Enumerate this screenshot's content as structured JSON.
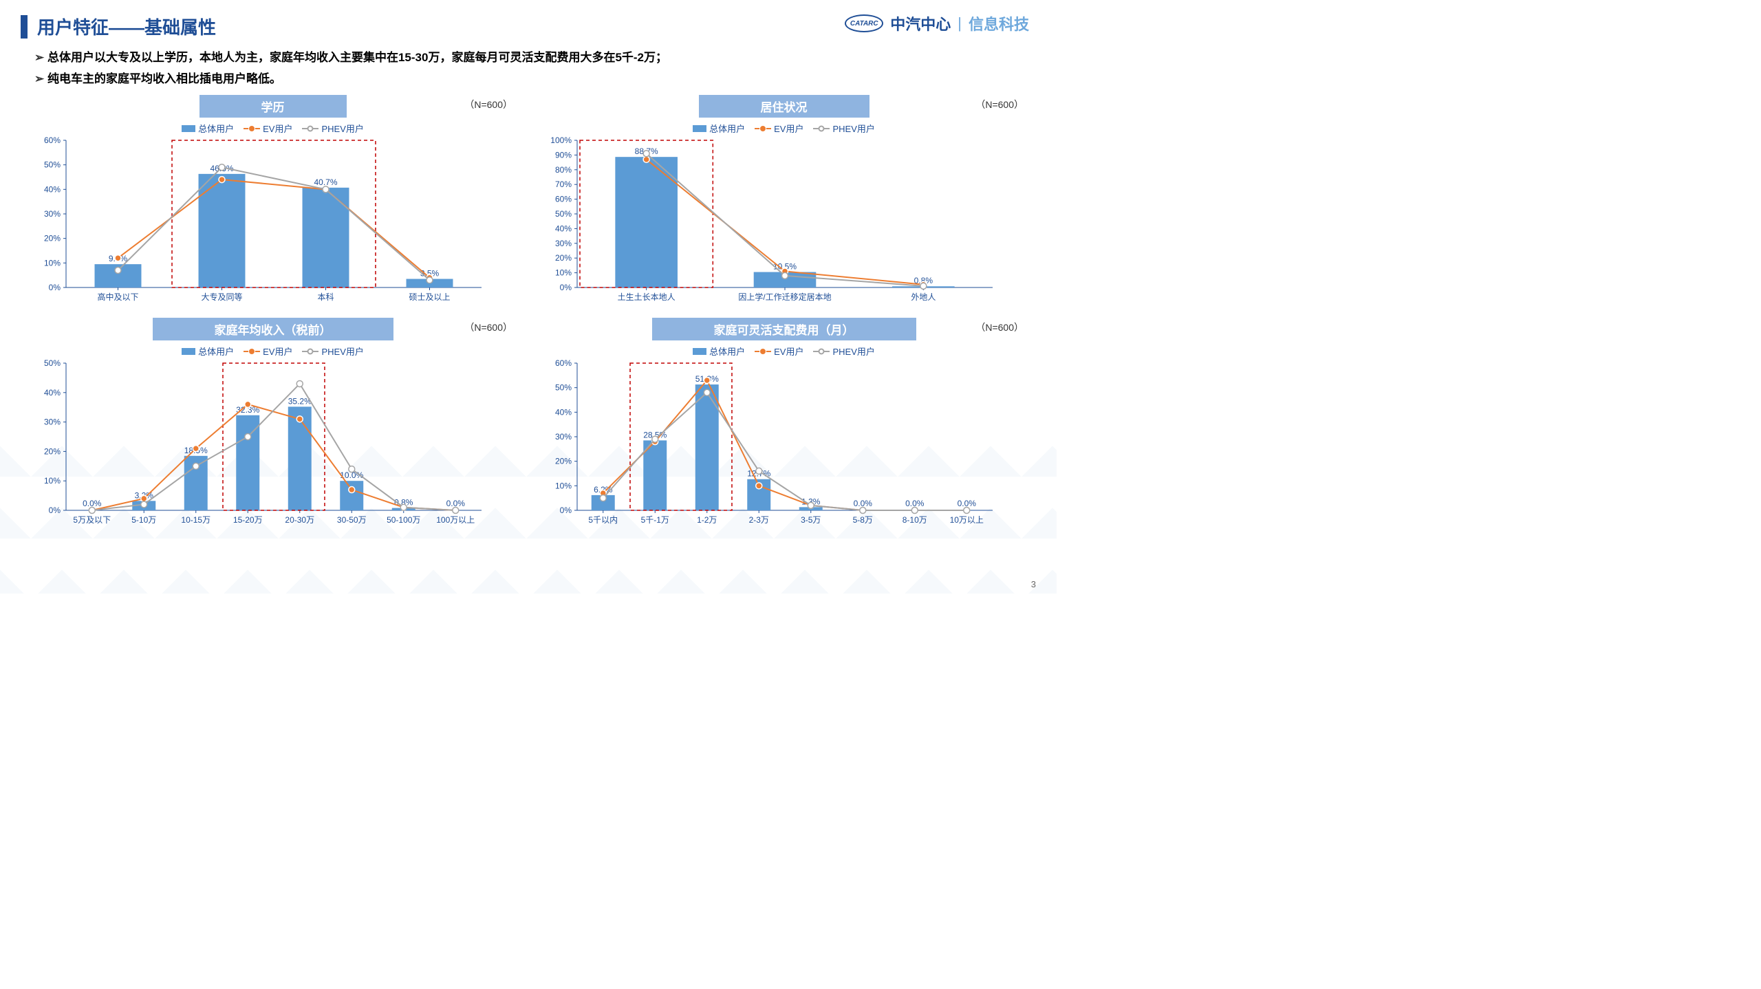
{
  "title": "用户特征——基础属性",
  "logo": {
    "brand": "CATARC",
    "name": "中汽中心",
    "sub": "信息科技"
  },
  "bullets": [
    "总体用户以大专及以上学历，本地人为主，家庭年均收入主要集中在15-30万，家庭每月可灵活支配费用大多在5千-2万；",
    "纯电车主的家庭平均收入相比插电用户略低。"
  ],
  "page_num": "3",
  "legend": {
    "bar": "总体用户",
    "ev": "EV用户",
    "phev": "PHEV用户"
  },
  "sample_label": "（N=600）",
  "colors": {
    "bar": "#5b9bd5",
    "ev": "#ed7d31",
    "phev": "#a5a5a5",
    "axis": "#1f4e96",
    "grid": "#d0d0d0",
    "highlight": "#c00000",
    "title_bg": "#8fb4e0"
  },
  "charts": [
    {
      "id": "education",
      "title": "学历",
      "categories": [
        "高中及以下",
        "大专及同等",
        "本科",
        "硕士及以上"
      ],
      "bar": [
        9.5,
        46.3,
        40.7,
        3.5
      ],
      "ev": [
        12,
        44,
        40,
        4
      ],
      "phev": [
        7,
        49,
        40,
        3
      ],
      "ymax": 60,
      "ystep": 10,
      "labels": [
        "9.5%",
        "46.3%",
        "40.7%",
        "3.5%"
      ],
      "highlight": [
        1,
        2
      ]
    },
    {
      "id": "residence",
      "title": "居住状况",
      "categories": [
        "土生土长本地人",
        "因上学/工作迁移定居本地",
        "外地人"
      ],
      "bar": [
        88.7,
        10.5,
        0.8
      ],
      "ev": [
        87,
        11,
        2
      ],
      "phev": [
        91,
        8,
        1
      ],
      "ymax": 100,
      "ystep": 10,
      "labels": [
        "88.7%",
        "10.5%",
        "0.8%"
      ],
      "highlight": [
        0
      ]
    },
    {
      "id": "income",
      "title": "家庭年均收入（税前）",
      "categories": [
        "5万及以下",
        "5-10万",
        "10-15万",
        "15-20万",
        "20-30万",
        "30-50万",
        "50-100万",
        "100万以上"
      ],
      "bar": [
        0.0,
        3.2,
        18.5,
        32.3,
        35.2,
        10.0,
        0.8,
        0.0
      ],
      "ev": [
        0,
        4,
        21,
        36,
        31,
        7,
        1,
        0
      ],
      "phev": [
        0,
        2,
        15,
        25,
        43,
        14,
        1,
        0
      ],
      "ymax": 50,
      "ystep": 10,
      "labels": [
        "0.0%",
        "3.2%",
        "18.5%",
        "32.3%",
        "35.2%",
        "10.0%",
        "0.8%",
        "0.0%"
      ],
      "highlight": [
        3,
        4
      ]
    },
    {
      "id": "disposable",
      "title": "家庭可灵活支配费用（月）",
      "categories": [
        "5千以内",
        "5千-1万",
        "1-2万",
        "2-3万",
        "3-5万",
        "5-8万",
        "8-10万",
        "10万以上"
      ],
      "bar": [
        6.2,
        28.5,
        51.3,
        12.7,
        1.3,
        0.0,
        0.0,
        0.0
      ],
      "ev": [
        7,
        28,
        53,
        10,
        2,
        0,
        0,
        0
      ],
      "phev": [
        5,
        29,
        48,
        16,
        2,
        0,
        0,
        0
      ],
      "ymax": 60,
      "ystep": 10,
      "labels": [
        "6.2%",
        "28.5%",
        "51.3%",
        "12.7%",
        "1.3%",
        "0.0%",
        "0.0%",
        "0.0%"
      ],
      "highlight": [
        1,
        2
      ]
    }
  ]
}
